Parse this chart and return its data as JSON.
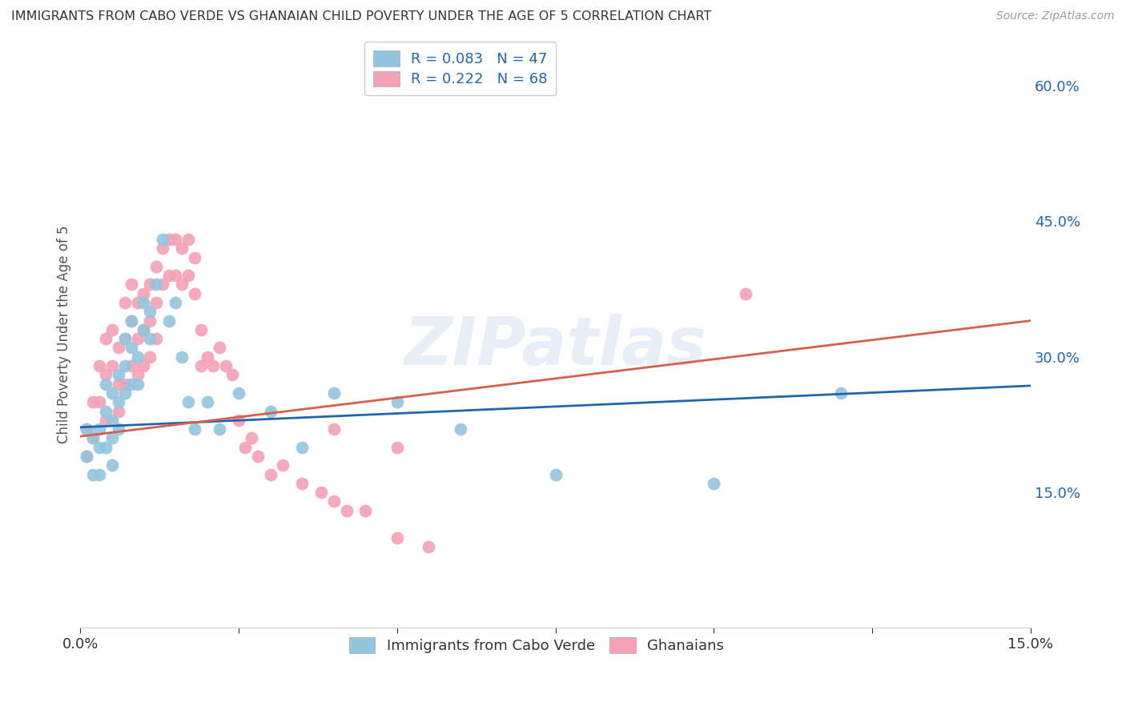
{
  "title": "IMMIGRANTS FROM CABO VERDE VS GHANAIAN CHILD POVERTY UNDER THE AGE OF 5 CORRELATION CHART",
  "source": "Source: ZipAtlas.com",
  "ylabel": "Child Poverty Under the Age of 5",
  "x_min": 0.0,
  "x_max": 0.15,
  "y_min": 0.0,
  "y_max": 0.65,
  "x_ticks": [
    0.0,
    0.025,
    0.05,
    0.075,
    0.1,
    0.125,
    0.15
  ],
  "y_ticks_right": [
    0.0,
    0.15,
    0.3,
    0.45,
    0.6
  ],
  "legend_label1": "Immigrants from Cabo Verde",
  "legend_label2": "Ghanaians",
  "color_blue": "#92c5de",
  "color_pink": "#f4a0b5",
  "color_blue_dark": "#2166ac",
  "color_pink_dark": "#d6604d",
  "trendline_blue_y0": 0.222,
  "trendline_blue_y1": 0.268,
  "trendline_pink_y0": 0.212,
  "trendline_pink_y1": 0.34,
  "cabo_verde_x": [
    0.001,
    0.001,
    0.002,
    0.002,
    0.003,
    0.003,
    0.003,
    0.004,
    0.004,
    0.004,
    0.005,
    0.005,
    0.005,
    0.005,
    0.006,
    0.006,
    0.006,
    0.007,
    0.007,
    0.007,
    0.008,
    0.008,
    0.008,
    0.009,
    0.009,
    0.01,
    0.01,
    0.011,
    0.011,
    0.012,
    0.013,
    0.014,
    0.015,
    0.016,
    0.017,
    0.018,
    0.02,
    0.022,
    0.025,
    0.03,
    0.035,
    0.04,
    0.05,
    0.06,
    0.075,
    0.1,
    0.12
  ],
  "cabo_verde_y": [
    0.22,
    0.19,
    0.21,
    0.17,
    0.22,
    0.2,
    0.17,
    0.27,
    0.24,
    0.2,
    0.26,
    0.23,
    0.21,
    0.18,
    0.28,
    0.25,
    0.22,
    0.32,
    0.29,
    0.26,
    0.34,
    0.31,
    0.27,
    0.3,
    0.27,
    0.36,
    0.33,
    0.35,
    0.32,
    0.38,
    0.43,
    0.34,
    0.36,
    0.3,
    0.25,
    0.22,
    0.25,
    0.22,
    0.26,
    0.24,
    0.2,
    0.26,
    0.25,
    0.22,
    0.17,
    0.16,
    0.26
  ],
  "ghanaians_x": [
    0.001,
    0.001,
    0.002,
    0.002,
    0.003,
    0.003,
    0.004,
    0.004,
    0.004,
    0.005,
    0.005,
    0.006,
    0.006,
    0.006,
    0.007,
    0.007,
    0.007,
    0.008,
    0.008,
    0.008,
    0.009,
    0.009,
    0.009,
    0.01,
    0.01,
    0.01,
    0.011,
    0.011,
    0.011,
    0.012,
    0.012,
    0.012,
    0.013,
    0.013,
    0.014,
    0.014,
    0.015,
    0.015,
    0.016,
    0.016,
    0.017,
    0.017,
    0.018,
    0.018,
    0.019,
    0.019,
    0.02,
    0.021,
    0.022,
    0.023,
    0.024,
    0.025,
    0.026,
    0.027,
    0.028,
    0.03,
    0.032,
    0.035,
    0.038,
    0.04,
    0.042,
    0.045,
    0.05,
    0.055,
    0.04,
    0.05,
    0.105
  ],
  "ghanaians_y": [
    0.22,
    0.19,
    0.25,
    0.21,
    0.29,
    0.25,
    0.32,
    0.28,
    0.23,
    0.33,
    0.29,
    0.31,
    0.27,
    0.24,
    0.36,
    0.32,
    0.27,
    0.38,
    0.34,
    0.29,
    0.36,
    0.32,
    0.28,
    0.37,
    0.33,
    0.29,
    0.38,
    0.34,
    0.3,
    0.4,
    0.36,
    0.32,
    0.42,
    0.38,
    0.43,
    0.39,
    0.43,
    0.39,
    0.42,
    0.38,
    0.43,
    0.39,
    0.41,
    0.37,
    0.33,
    0.29,
    0.3,
    0.29,
    0.31,
    0.29,
    0.28,
    0.23,
    0.2,
    0.21,
    0.19,
    0.17,
    0.18,
    0.16,
    0.15,
    0.14,
    0.13,
    0.13,
    0.1,
    0.09,
    0.22,
    0.2,
    0.37
  ],
  "watermark_text": "ZIPatlas",
  "background_color": "#ffffff",
  "grid_color": "#d0d0d0"
}
